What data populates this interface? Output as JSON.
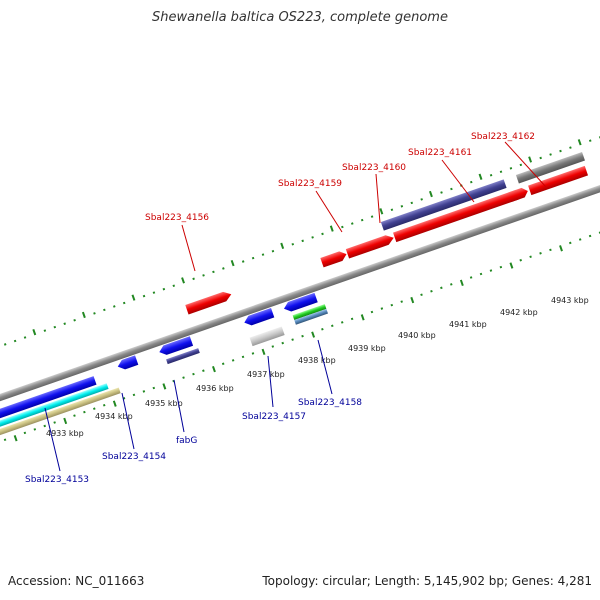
{
  "title": "Shewanella baltica OS223, complete genome",
  "footer": {
    "accession": "Accession: NC_011663",
    "summary": "Topology: circular; Length: 5,145,902 bp; Genes: 4,281"
  },
  "colors": {
    "forward_label": "#cc0000",
    "reverse_label": "#000099",
    "backbone": "#888888",
    "ticks": "#228822"
  },
  "scale_labels": [
    "4933 kbp",
    "4934 kbp",
    "4935 kbp",
    "4936 kbp",
    "4937 kbp",
    "4938 kbp",
    "4939 kbp",
    "4940 kbp",
    "4941 kbp",
    "4942 kbp",
    "4943 kbp"
  ],
  "forward_gene_labels": [
    "Sbal223_4156",
    "Sbal223_4159",
    "Sbal223_4160",
    "Sbal223_4161",
    "Sbal223_4162"
  ],
  "reverse_gene_labels": [
    "Sbal223_4153",
    "Sbal223_4154",
    "fabG",
    "Sbal223_4157",
    "Sbal223_4158"
  ]
}
